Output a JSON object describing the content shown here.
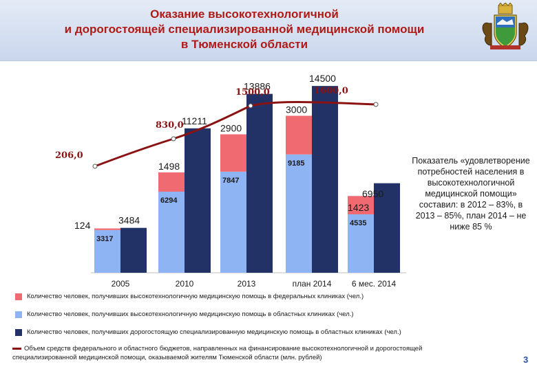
{
  "header": {
    "title_line1": "Оказание высокотехнологичной",
    "title_line2": "и дорогостоящей специализированной медицинской помощи",
    "title_line3": "в Тюменской области"
  },
  "chart_data": {
    "type": "bar",
    "categories": [
      "2005",
      "2010",
      "2013",
      "план 2014",
      "6 мес. 2014"
    ],
    "series": [
      {
        "name": "Количество человек, получивших высокотехнологичную медицинскую помощь в федеральных клиниках (чел.)",
        "color": "#f06a72",
        "values": [
          124,
          1498,
          2900,
          3000,
          1423
        ]
      },
      {
        "name": "Количество человек, получивших высокотехнологичную медицинскую помощь в областных клиниках (чел.)",
        "color": "#8fb4f4",
        "values": [
          3317,
          6294,
          7847,
          9185,
          4535
        ]
      },
      {
        "name": "Количество человек, получивших дорогостоящую специализированную медицинскую помощь в областных клиниках (чел.)",
        "color": "#233266",
        "values": [
          3484,
          11211,
          13886,
          14500,
          6950
        ]
      }
    ],
    "line_series": {
      "name": "Объем средств федерального и областного бюджетов, направленных на финансирование высокотехнологичной и дорогостоящей специализированной медицинской помощи, оказываемой жителям Тюменской области (млн. рублей)",
      "color": "#8a1212",
      "labels": [
        "206,0",
        "830,0",
        "1500,0",
        "1600,0"
      ],
      "values": [
        206.0,
        830.0,
        1500.0,
        1600.0
      ]
    },
    "bar_ylim": [
      0,
      16000
    ]
  },
  "note": {
    "text": "Показатель «удовлетворение потребностей населения в высокотехнологичной медицинской помощи» составил: в 2012 – 83%, в 2013 – 85%, план 2014 – не ниже 85 %"
  },
  "legend": [
    {
      "text": "Количество человек, получивших высокотехнологичную медицинскую помощь в федеральных клиниках (чел.)",
      "color": "#f06a72"
    },
    {
      "text": "Количество человек, получивших высокотехнологичную медицинскую помощь в областных клиниках (чел.)",
      "color": "#8fb4f4"
    },
    {
      "text": "Количество человек, получивших дорогостоящую специализированную медицинскую помощь в областных клиниках (чел.)",
      "color": "#233266"
    },
    {
      "text": "Объем средств федерального и областного бюджетов, направленных на финансирование высокотехнологичной и дорогостоящей",
      "text2": "специализированной медицинской помощи, оказываемой жителям Тюменской области (млн. рублей)",
      "color": "#8a1212"
    }
  ],
  "page_number": "3"
}
